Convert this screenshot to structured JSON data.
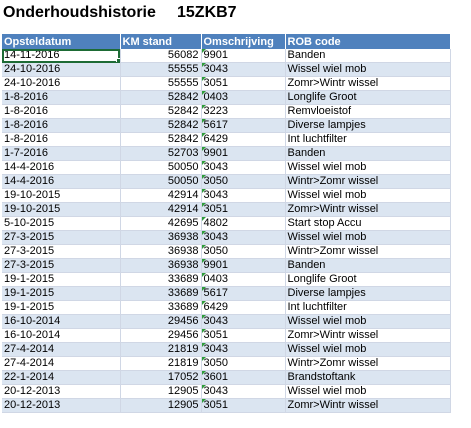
{
  "header": {
    "title": "Onderhoudshistorie",
    "plate": "15ZKB7"
  },
  "table": {
    "columns": [
      "Opsteldatum",
      "KM stand",
      "Omschrijving",
      "ROB code"
    ],
    "rows": [
      {
        "date": "14-11-2016",
        "km": "56082",
        "code": "9901",
        "rob": "Banden"
      },
      {
        "date": "24-10-2016",
        "km": "55555",
        "code": "3043",
        "rob": "Wissel wiel mob"
      },
      {
        "date": "24-10-2016",
        "km": "55555",
        "code": "3051",
        "rob": "Zomr>Wintr wissel"
      },
      {
        "date": "1-8-2016",
        "km": "52842",
        "code": "0403",
        "rob": "Longlife Groot"
      },
      {
        "date": "1-8-2016",
        "km": "52842",
        "code": "3223",
        "rob": "Remvloeistof"
      },
      {
        "date": "1-8-2016",
        "km": "52842",
        "code": "5617",
        "rob": "Diverse lampjes"
      },
      {
        "date": "1-8-2016",
        "km": "52842",
        "code": "6429",
        "rob": "Int luchtfilter"
      },
      {
        "date": "1-7-2016",
        "km": "52703",
        "code": "9901",
        "rob": "Banden"
      },
      {
        "date": "14-4-2016",
        "km": "50050",
        "code": "3043",
        "rob": "Wissel wiel mob"
      },
      {
        "date": "14-4-2016",
        "km": "50050",
        "code": "3050",
        "rob": "Wintr>Zomr wissel"
      },
      {
        "date": "19-10-2015",
        "km": "42914",
        "code": "3043",
        "rob": "Wissel wiel mob"
      },
      {
        "date": "19-10-2015",
        "km": "42914",
        "code": "3051",
        "rob": "Zomr>Wintr wissel"
      },
      {
        "date": "5-10-2015",
        "km": "42695",
        "code": "4802",
        "rob": "Start stop Accu"
      },
      {
        "date": "27-3-2015",
        "km": "36938",
        "code": "3043",
        "rob": "Wissel wiel mob"
      },
      {
        "date": "27-3-2015",
        "km": "36938",
        "code": "3050",
        "rob": "Wintr>Zomr wissel"
      },
      {
        "date": "27-3-2015",
        "km": "36938",
        "code": "9901",
        "rob": "Banden"
      },
      {
        "date": "19-1-2015",
        "km": "33689",
        "code": "0403",
        "rob": "Longlife Groot"
      },
      {
        "date": "19-1-2015",
        "km": "33689",
        "code": "5617",
        "rob": "Diverse lampjes"
      },
      {
        "date": "19-1-2015",
        "km": "33689",
        "code": "6429",
        "rob": "Int luchtfilter"
      },
      {
        "date": "16-10-2014",
        "km": "29456",
        "code": "3043",
        "rob": "Wissel wiel mob"
      },
      {
        "date": "16-10-2014",
        "km": "29456",
        "code": "3051",
        "rob": "Zomr>Wintr wissel"
      },
      {
        "date": "27-4-2014",
        "km": "21819",
        "code": "3043",
        "rob": "Wissel wiel mob"
      },
      {
        "date": "27-4-2014",
        "km": "21819",
        "code": "3050",
        "rob": "Wintr>Zomr wissel"
      },
      {
        "date": "22-1-2014",
        "km": "17052",
        "code": "3601",
        "rob": "Brandstoftank"
      },
      {
        "date": "20-12-2013",
        "km": "12905",
        "code": "3043",
        "rob": "Wissel wiel mob"
      },
      {
        "date": "20-12-2013",
        "km": "12905",
        "code": "3051",
        "rob": "Zomr>Wintr wissel"
      }
    ]
  },
  "colors": {
    "header_bg": "#4f81bd",
    "band_bg": "#dbe5f1",
    "error_triangle": "#2e9c3a"
  }
}
